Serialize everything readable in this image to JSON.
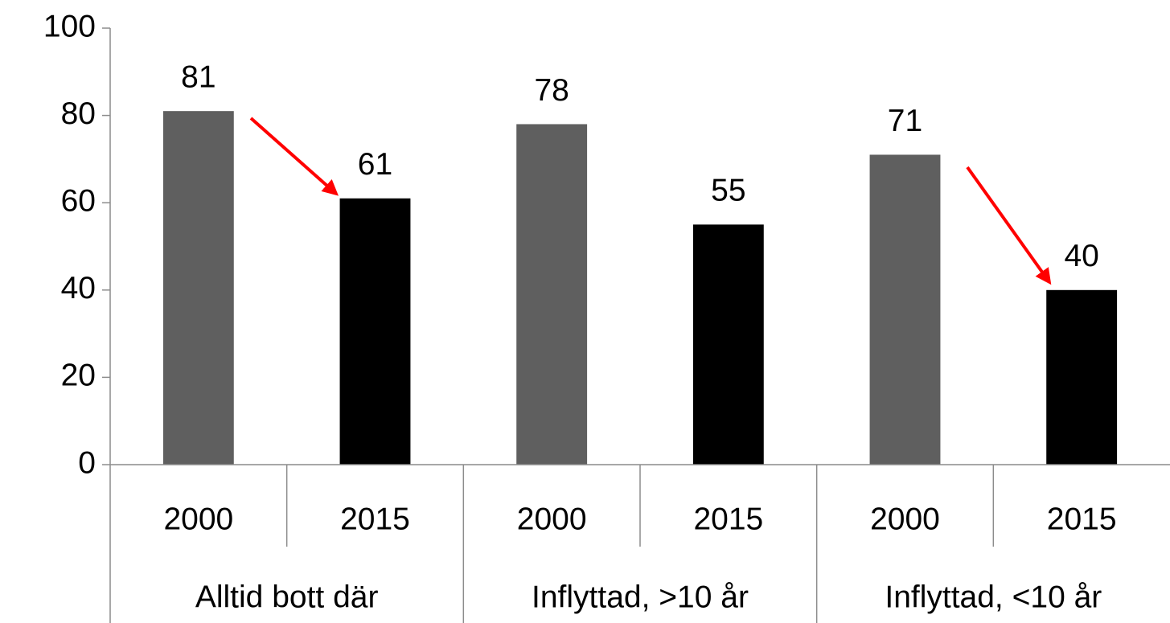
{
  "chart_data": {
    "type": "bar",
    "groups": [
      "Alltid bott där",
      "Inflyttad, >10 år",
      "Inflyttad, <10 år"
    ],
    "categories": [
      "2000",
      "2015",
      "2000",
      "2015",
      "2000",
      "2015"
    ],
    "values": [
      81,
      61,
      78,
      55,
      71,
      40
    ],
    "colors": [
      "#5f5f5f",
      "#000000",
      "#5f5f5f",
      "#000000",
      "#5f5f5f",
      "#000000"
    ],
    "ylim": [
      0,
      100
    ],
    "yticks": [
      0,
      20,
      40,
      60,
      80,
      100
    ],
    "grid": false
  }
}
